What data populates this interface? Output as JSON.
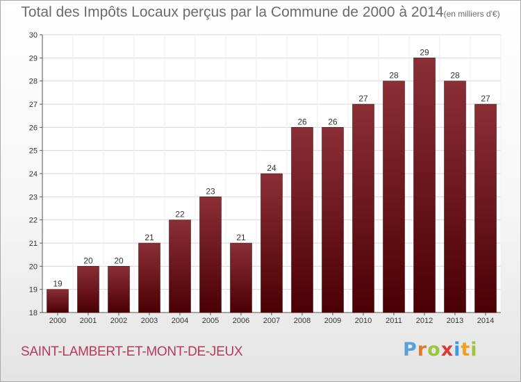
{
  "chart_data": {
    "type": "bar",
    "title": "Total des Impôts Locaux perçus par la Commune de 2000 à 2014",
    "unit_note": "(en milliers d'€)",
    "categories": [
      "2000",
      "2001",
      "2002",
      "2003",
      "2004",
      "2005",
      "2006",
      "2007",
      "2008",
      "2009",
      "2010",
      "2011",
      "2012",
      "2013",
      "2014"
    ],
    "values": [
      19,
      20,
      20,
      21,
      22,
      23,
      21,
      24,
      26,
      26,
      27,
      28,
      29,
      28,
      27
    ],
    "ylim": [
      18,
      30
    ],
    "yticks": [
      18,
      19,
      20,
      21,
      22,
      23,
      24,
      25,
      26,
      27,
      28,
      29,
      30
    ],
    "xlabel": "",
    "ylabel": "",
    "bar_color": "#7a1a22",
    "grid": true
  },
  "footer": {
    "commune": "SAINT-LAMBERT-ET-MONT-DE-JEUX",
    "logo": "Proxiti"
  }
}
